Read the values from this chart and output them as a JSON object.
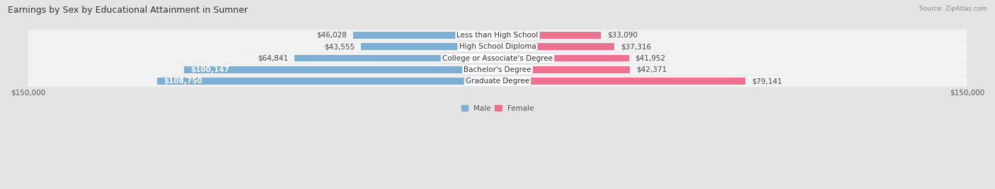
{
  "title": "Earnings by Sex by Educational Attainment in Sumner",
  "source": "Source: ZipAtlas.com",
  "categories": [
    "Less than High School",
    "High School Diploma",
    "College or Associate's Degree",
    "Bachelor's Degree",
    "Graduate Degree"
  ],
  "male_values": [
    46028,
    43555,
    64841,
    100147,
    108750
  ],
  "female_values": [
    33090,
    37316,
    41952,
    42371,
    79141
  ],
  "male_labels": [
    "$46,028",
    "$43,555",
    "$64,841",
    "$100,147",
    "$108,750"
  ],
  "female_labels": [
    "$33,090",
    "$37,316",
    "$41,952",
    "$42,371",
    "$79,141"
  ],
  "male_color": "#7bafd4",
  "female_color": "#f07090",
  "axis_max": 150000,
  "x_tick_label_left": "$150,000",
  "x_tick_label_right": "$150,000",
  "bg_color": "#e4e4e4",
  "row_bg_color": "#f2f2f2",
  "title_fontsize": 9,
  "label_fontsize": 7.5,
  "category_fontsize": 7.5,
  "male_label_threshold": 80000
}
